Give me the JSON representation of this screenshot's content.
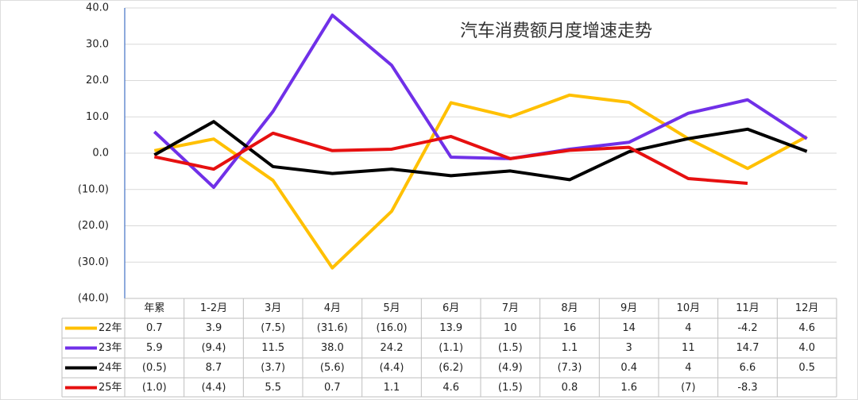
{
  "chart_data": {
    "type": "line",
    "title": "汽车消费额月度增速走势",
    "categories": [
      "年累",
      "1-2月",
      "3月",
      "4月",
      "5月",
      "6月",
      "7月",
      "8月",
      "9月",
      "10月",
      "11月",
      "12月"
    ],
    "series": [
      {
        "name": "22年",
        "color": "#ffc000",
        "values": [
          0.7,
          3.9,
          -7.5,
          -31.6,
          -16.0,
          13.9,
          10,
          16,
          14,
          4,
          -4.2,
          4.6
        ],
        "value_labels": [
          "0.7",
          "3.9",
          "(7.5)",
          "(31.6)",
          "(16.0)",
          "13.9",
          "10",
          "16",
          "14",
          "4",
          "-4.2",
          "4.6"
        ]
      },
      {
        "name": "23年",
        "color": "#7030e8",
        "values": [
          5.9,
          -9.4,
          11.5,
          38.0,
          24.2,
          -1.1,
          -1.5,
          1.1,
          3,
          11,
          14.7,
          4.0
        ],
        "value_labels": [
          "5.9",
          "(9.4)",
          "11.5",
          "38.0",
          "24.2",
          "(1.1)",
          "(1.5)",
          "1.1",
          "3",
          "11",
          "14.7",
          "4.0"
        ]
      },
      {
        "name": "24年",
        "color": "#000000",
        "values": [
          -0.5,
          8.7,
          -3.7,
          -5.6,
          -4.4,
          -6.2,
          -4.9,
          -7.3,
          0.4,
          4,
          6.6,
          0.5
        ],
        "value_labels": [
          "(0.5)",
          "8.7",
          "(3.7)",
          "(5.6)",
          "(4.4)",
          "(6.2)",
          "(4.9)",
          "(7.3)",
          "0.4",
          "4",
          "6.6",
          "0.5"
        ]
      },
      {
        "name": "25年",
        "color": "#e61010",
        "values": [
          -1.0,
          -4.4,
          5.5,
          0.7,
          1.1,
          4.6,
          -1.5,
          0.8,
          1.6,
          -7,
          -8.3,
          null
        ],
        "value_labels": [
          "(1.0)",
          "(4.4)",
          "5.5",
          "0.7",
          "1.1",
          "4.6",
          "(1.5)",
          "0.8",
          "1.6",
          "(7)",
          "-8.3",
          null
        ]
      }
    ],
    "ylim": [
      -40,
      40
    ],
    "yticks": [
      {
        "value": 40,
        "label": "40.0"
      },
      {
        "value": 30,
        "label": "30.0"
      },
      {
        "value": 20,
        "label": "20.0"
      },
      {
        "value": 10,
        "label": "10.0"
      },
      {
        "value": 0,
        "label": "0.0"
      },
      {
        "value": -10,
        "label": "(10.0)"
      },
      {
        "value": -20,
        "label": "(20.0)"
      },
      {
        "value": -30,
        "label": "(30.0)"
      },
      {
        "value": -40,
        "label": "(40.0)"
      }
    ],
    "grid": true,
    "data_table": true
  }
}
